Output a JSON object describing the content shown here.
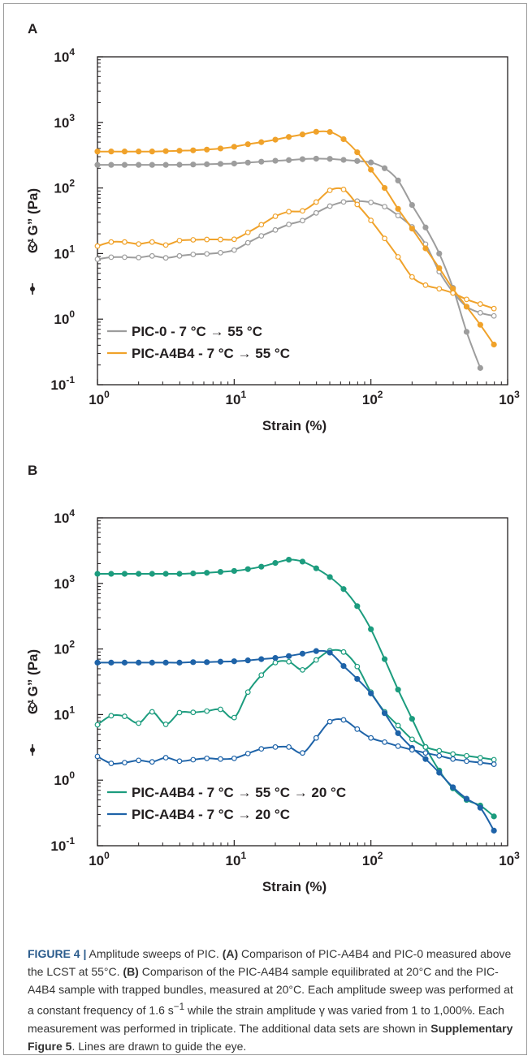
{
  "chart_data": [
    {
      "panel": "A",
      "type": "line",
      "xscale": "log",
      "yscale": "log",
      "xlim": [
        1,
        1000
      ],
      "ylim": [
        0.1,
        10000
      ],
      "xlabel": "Strain (%)",
      "ylabel": "G’    G” (Pa)",
      "x_ticks": [
        "10^0",
        "10^1",
        "10^2",
        "10^3"
      ],
      "y_ticks": [
        "10^-1",
        "10^0",
        "10^1",
        "10^2",
        "10^3",
        "10^4"
      ],
      "legend_position": "bottom-left",
      "series": [
        {
          "name": "PIC-0 - 7 °C → 55 °C",
          "color": "#9d9d9d",
          "gprime_x": [
            1.0,
            1.26,
            1.58,
            2.0,
            2.51,
            3.16,
            3.98,
            5.01,
            6.31,
            7.94,
            10,
            12.6,
            15.8,
            20,
            25.1,
            31.6,
            39.8,
            50.1,
            63.1,
            79.4,
            100,
            126,
            158,
            200,
            251,
            316,
            398,
            501,
            631
          ],
          "gprime_y": [
            225,
            225,
            225,
            225,
            225,
            225,
            226,
            228,
            230,
            233,
            236,
            244,
            252,
            260,
            266,
            275,
            280,
            278,
            268,
            258,
            245,
            200,
            130,
            55,
            25,
            10,
            3,
            0.64,
            0.18
          ],
          "gdouble_x": [
            1.0,
            1.26,
            1.58,
            2.0,
            2.51,
            3.16,
            3.98,
            5.01,
            6.31,
            7.94,
            10,
            12.6,
            15.8,
            20,
            25.1,
            31.6,
            39.8,
            50.1,
            63.1,
            79.4,
            100,
            126,
            158,
            200,
            251,
            316,
            398,
            501,
            631,
            794
          ],
          "gdouble_y": [
            8.2,
            8.8,
            8.8,
            8.7,
            9.2,
            8.6,
            9.2,
            9.7,
            9.9,
            10.3,
            11.3,
            14.6,
            18.6,
            22.9,
            27.8,
            31.8,
            41.7,
            52.9,
            61.3,
            63.0,
            60.3,
            51.9,
            38.0,
            25.5,
            13.9,
            5.3,
            2.6,
            1.55,
            1.25,
            1.12
          ]
        },
        {
          "name": "PIC-A4B4 - 7 °C → 55 °C",
          "color": "#f0a22a",
          "gprime_x": [
            1.0,
            1.26,
            1.58,
            2.0,
            2.51,
            3.16,
            3.98,
            5.01,
            6.31,
            7.94,
            10,
            12.6,
            15.8,
            20,
            25.1,
            31.6,
            39.8,
            50.1,
            63.1,
            79.4,
            100,
            126,
            158,
            200,
            251,
            316,
            398,
            501,
            631,
            794
          ],
          "gprime_y": [
            360,
            360,
            360,
            360,
            360,
            365,
            370,
            375,
            385,
            400,
            425,
            465,
            500,
            545,
            600,
            655,
            720,
            715,
            555,
            350,
            190,
            100,
            48,
            24,
            12,
            6,
            2.9,
            1.55,
            0.82,
            0.41
          ],
          "gdouble_x": [
            1.0,
            1.26,
            1.58,
            2.0,
            2.51,
            3.16,
            3.98,
            5.01,
            6.31,
            7.94,
            10,
            12.6,
            15.8,
            20,
            25.1,
            31.6,
            39.8,
            50.1,
            63.1,
            79.4,
            100,
            126,
            158,
            200,
            251,
            316,
            398,
            501,
            631,
            794
          ],
          "gdouble_y": [
            13.0,
            15.0,
            15.0,
            14.0,
            15.0,
            13.5,
            15.8,
            16.2,
            16.4,
            16.4,
            16.5,
            21.0,
            27.5,
            37.0,
            43.5,
            44.8,
            61.0,
            92.0,
            95.0,
            56.0,
            32.0,
            17.0,
            8.9,
            4.4,
            3.3,
            2.9,
            2.5,
            2.0,
            1.7,
            1.45
          ]
        }
      ]
    },
    {
      "panel": "B",
      "type": "line",
      "xscale": "log",
      "yscale": "log",
      "xlim": [
        1,
        1000
      ],
      "ylim": [
        0.1,
        10000
      ],
      "xlabel": "Strain (%)",
      "ylabel": "G’    G” (Pa)",
      "x_ticks": [
        "10^0",
        "10^1",
        "10^2",
        "10^3"
      ],
      "y_ticks": [
        "10^-1",
        "10^0",
        "10^1",
        "10^2",
        "10^3",
        "10^4"
      ],
      "legend_position": "bottom-left",
      "series": [
        {
          "name": "PIC-A4B4 - 7 °C → 55 °C → 20 °C",
          "color": "#1c9c7e",
          "gprime_x": [
            1.0,
            1.26,
            1.58,
            2.0,
            2.51,
            3.16,
            3.98,
            5.01,
            6.31,
            7.94,
            10,
            12.6,
            15.8,
            20,
            25.1,
            31.6,
            39.8,
            50.1,
            63.1,
            79.4,
            100,
            126,
            158,
            200,
            251,
            316,
            398,
            501,
            631,
            794
          ],
          "gprime_y": [
            1400,
            1400,
            1400,
            1400,
            1400,
            1400,
            1400,
            1420,
            1450,
            1500,
            1550,
            1650,
            1800,
            2050,
            2300,
            2150,
            1700,
            1250,
            820,
            450,
            200,
            70,
            24,
            8.6,
            3.2,
            1.4,
            0.75,
            0.5,
            0.41,
            0.28
          ],
          "gdouble_x": [
            1.0,
            1.26,
            1.58,
            2.0,
            2.51,
            3.16,
            3.98,
            5.01,
            6.31,
            7.94,
            10,
            12.6,
            15.8,
            20,
            25.1,
            31.6,
            39.8,
            50.1,
            63.1,
            79.4,
            100,
            126,
            158,
            200,
            251,
            316,
            398,
            501,
            631,
            794
          ],
          "gdouble_y": [
            7.0,
            9.6,
            9.4,
            7.4,
            11.0,
            7.1,
            10.7,
            10.8,
            11.3,
            12.0,
            9.0,
            22.0,
            40.0,
            62.0,
            64.0,
            48.0,
            68.0,
            94.0,
            90.0,
            54.0,
            22.0,
            11.0,
            6.8,
            4.2,
            3.2,
            2.8,
            2.5,
            2.35,
            2.2,
            2.05
          ]
        },
        {
          "name": "PIC-A4B4 - 7 °C → 20 °C",
          "color": "#1e63a8",
          "gprime_x": [
            1.0,
            1.26,
            1.58,
            2.0,
            2.51,
            3.16,
            3.98,
            5.01,
            6.31,
            7.94,
            10,
            12.6,
            15.8,
            20,
            25.1,
            31.6,
            39.8,
            50.1,
            63.1,
            79.4,
            100,
            126,
            158,
            200,
            251,
            316,
            398,
            501,
            631,
            794
          ],
          "gprime_y": [
            62,
            62,
            62,
            62,
            62,
            62,
            62,
            63,
            63,
            64,
            65,
            67,
            70,
            73,
            78,
            85,
            93,
            88,
            55,
            35,
            21,
            10.5,
            5.2,
            3.1,
            2.1,
            1.3,
            0.78,
            0.52,
            0.38,
            0.17
          ],
          "gdouble_x": [
            1.0,
            1.26,
            1.58,
            2.0,
            2.51,
            3.16,
            3.98,
            5.01,
            6.31,
            7.94,
            10,
            12.6,
            15.8,
            20,
            25.1,
            31.6,
            39.8,
            50.1,
            63.1,
            79.4,
            100,
            126,
            158,
            200,
            251,
            316,
            398,
            501,
            631,
            794
          ],
          "gdouble_y": [
            2.3,
            1.8,
            1.85,
            2.0,
            1.9,
            2.2,
            1.95,
            2.05,
            2.15,
            2.1,
            2.15,
            2.55,
            3.0,
            3.2,
            3.2,
            2.6,
            4.4,
            7.8,
            8.3,
            6.0,
            4.4,
            3.8,
            3.3,
            2.9,
            2.6,
            2.35,
            2.1,
            1.95,
            1.85,
            1.75
          ]
        }
      ]
    }
  ],
  "caption": {
    "label": "FIGURE 4 |",
    "text1": " Amplitude sweeps of PIC. ",
    "partA": "(A)",
    "text2": " Comparison of PIC-A4B4 and PIC-0 measured above the LCST at 55°C. ",
    "partB": "(B)",
    "text3": " Comparison of the PIC-A4B4 sample equilibrated at 20°C and the PIC-A4B4 sample with trapped bundles, measured at 20°C. Each amplitude sweep was performed at a constant frequency of 1.6 s",
    "sup": "−1",
    "text4": " while the strain amplitude γ was varied from 1 to 1,000%. Each measurement was performed in triplicate. The additional data sets are shown in ",
    "bold_ref": "Supplementary Figure 5",
    "text5": ". Lines are drawn to guide the eye."
  }
}
